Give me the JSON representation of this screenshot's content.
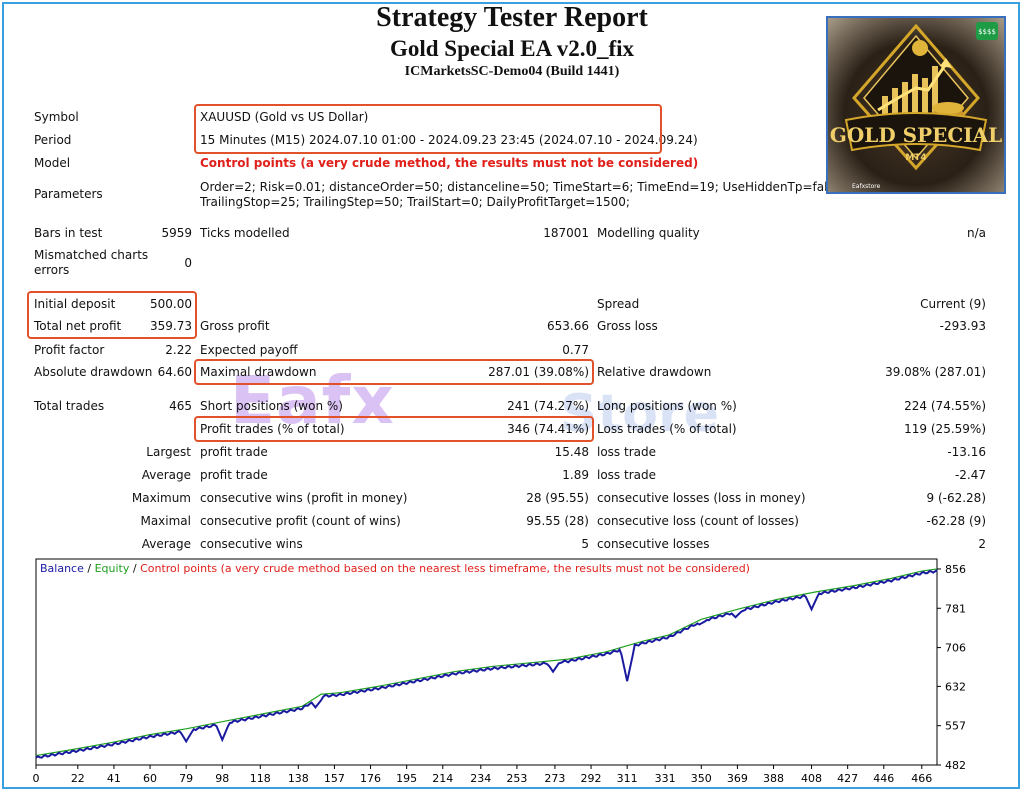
{
  "header": {
    "title": "Strategy Tester Report",
    "subtitle": "Gold Special EA v2.0_fix",
    "server": "ICMarketsSC-Demo04 (Build 1441)"
  },
  "logo": {
    "brand": "GOLD SPECIAL",
    "platform": "MT4",
    "badge": "$$$$",
    "maker": "Eafxstore"
  },
  "watermark": {
    "main": "Eafx",
    "tail": "Store"
  },
  "info": {
    "symbol_label": "Symbol",
    "symbol": "XAUUSD (Gold vs US Dollar)",
    "period_label": "Period",
    "period": "15 Minutes (M15) 2024.07.10 01:00 - 2024.09.23 23:45 (2024.07.10 - 2024.09.24)",
    "model_label": "Model",
    "model": "Control points (a very crude method, the results must not be considered)",
    "params_label": "Parameters",
    "params_line1": "Order=2; Risk=0.01; distanceOrder=50; distanceline=50; TimeStart=6; TimeEnd=19; UseHiddenTp=false; hidde",
    "params_line2": "TrailingStop=25; TrailingStep=50; TrailStart=0; DailyProfitTarget=1500;"
  },
  "stats": {
    "bars_label": "Bars in test",
    "bars": "5959",
    "ticks_label": "Ticks modelled",
    "ticks": "187001",
    "mq_label": "Modelling quality",
    "mq": "n/a",
    "mismatch_label1": "Mismatched charts",
    "mismatch_label2": "errors",
    "mismatch": "0",
    "init_label": "Initial deposit",
    "init": "500.00",
    "spread_label": "Spread",
    "spread": "Current (9)",
    "net_label": "Total net profit",
    "net": "359.73",
    "gp_label": "Gross profit",
    "gp": "653.66",
    "gl_label": "Gross loss",
    "gl": "-293.93",
    "pf_label": "Profit factor",
    "pf": "2.22",
    "ep_label": "Expected payoff",
    "ep": "0.77",
    "ad_label": "Absolute drawdown",
    "ad": "64.60",
    "md_label": "Maximal drawdown",
    "md": "287.01 (39.08%)",
    "rd_label": "Relative drawdown",
    "rd": "39.08% (287.01)",
    "tt_label": "Total trades",
    "tt": "465",
    "sp_label": "Short positions (won %)",
    "sp": "241 (74.27%)",
    "lp_label": "Long positions (won %)",
    "lp": "224 (74.55%)",
    "pt_label": "Profit trades (% of total)",
    "pt": "346 (74.41%)",
    "lt_label": "Loss trades (% of total)",
    "lt": "119 (25.59%)",
    "largest": "Largest",
    "lpt_label": "profit trade",
    "lpt": "15.48",
    "llt_label": "loss trade",
    "llt": "-13.16",
    "average": "Average",
    "apt_label": "profit trade",
    "apt": "1.89",
    "alt_label": "loss trade",
    "alt": "-2.47",
    "maximum": "Maximum",
    "mcw_label": "consecutive wins (profit in money)",
    "mcw": "28 (95.55)",
    "mcl_label": "consecutive losses (loss in money)",
    "mcl": "9 (-62.28)",
    "maximal": "Maximal",
    "mcp_label": "consecutive profit (count of wins)",
    "mcp": "95.55 (28)",
    "mclc_label": "consecutive loss (count of losses)",
    "mclc": "-62.28 (9)",
    "average2": "Average",
    "acw_label": "consecutive wins",
    "acw": "5",
    "acl_label": "consecutive losses",
    "acl": "2"
  },
  "chart_data": {
    "type": "line",
    "legend": {
      "balance": "Balance",
      "sep1": " / ",
      "equity": "Equity",
      "sep2": " / ",
      "note": "Control points (a very crude method based on the nearest less timeframe, the results must not be considered)"
    },
    "colors": {
      "balance": "#1a1aa0",
      "equity": "#1fa01f",
      "note": "#e0201b"
    },
    "xticks": [
      0,
      22,
      41,
      60,
      79,
      98,
      118,
      138,
      157,
      176,
      195,
      214,
      234,
      253,
      273,
      292,
      311,
      331,
      350,
      369,
      388,
      408,
      427,
      446,
      466
    ],
    "yticks": [
      482,
      557,
      632,
      706,
      781,
      856
    ],
    "xlim": [
      0,
      474
    ],
    "ylim": [
      482,
      875
    ],
    "balance": {
      "x": [
        0,
        20,
        40,
        60,
        79,
        100,
        120,
        140,
        150,
        160,
        180,
        200,
        220,
        240,
        260,
        280,
        300,
        320,
        333,
        350,
        370,
        390,
        410,
        430,
        450,
        466,
        474
      ],
      "y": [
        500,
        512,
        525,
        540,
        551,
        566,
        580,
        594,
        617,
        620,
        632,
        646,
        660,
        670,
        677,
        684,
        698,
        719,
        730,
        760,
        780,
        798,
        812,
        824,
        838,
        852,
        856
      ]
    },
    "equity_dips": [
      {
        "x": 79,
        "y": 527
      },
      {
        "x": 98,
        "y": 530
      },
      {
        "x": 272,
        "y": 660
      },
      {
        "x": 311,
        "y": 642
      },
      {
        "x": 331,
        "y": 733
      },
      {
        "x": 349,
        "y": 750
      },
      {
        "x": 368,
        "y": 764
      },
      {
        "x": 408,
        "y": 779
      },
      {
        "x": 147,
        "y": 592
      }
    ]
  }
}
